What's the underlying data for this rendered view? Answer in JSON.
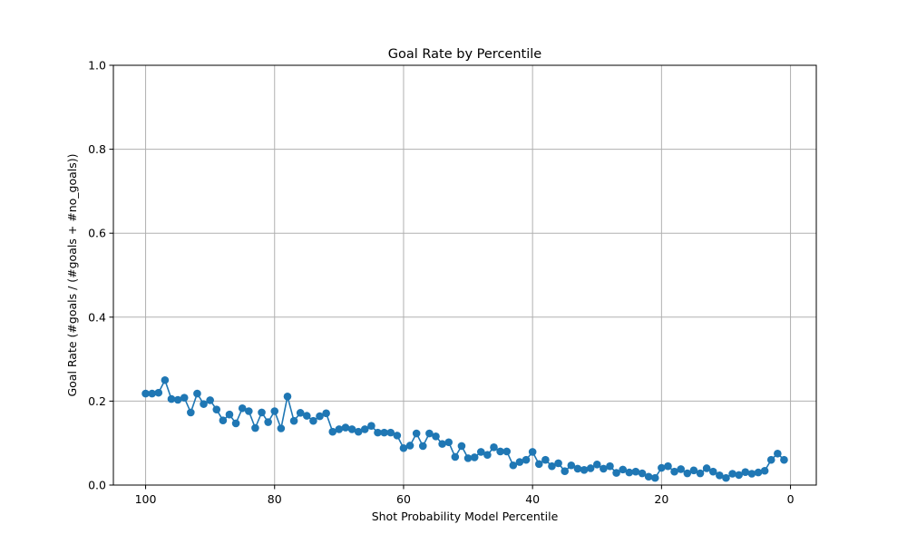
{
  "chart_data": {
    "type": "line",
    "title": "Goal Rate by Percentile",
    "xlabel": "Shot Probability Model Percentile",
    "ylabel": "Goal Rate (#goals / (#goals + #no_goals))",
    "xlim": [
      105,
      -4
    ],
    "ylim": [
      0,
      1
    ],
    "x_ticks": [
      100,
      80,
      60,
      40,
      20,
      0
    ],
    "y_ticks": [
      0.0,
      0.2,
      0.4,
      0.6,
      0.8,
      1.0
    ],
    "x_tick_labels": [
      "100",
      "80",
      "60",
      "40",
      "20",
      "0"
    ],
    "y_tick_labels": [
      "0.0",
      "0.2",
      "0.4",
      "0.6",
      "0.8",
      "1.0"
    ],
    "grid": true,
    "series": [
      {
        "color": "#1f77b4",
        "marker": "circle",
        "x": [
          100,
          99,
          98,
          97,
          96,
          95,
          94,
          93,
          92,
          91,
          90,
          89,
          88,
          87,
          86,
          85,
          84,
          83,
          82,
          81,
          80,
          79,
          78,
          77,
          76,
          75,
          74,
          73,
          72,
          71,
          70,
          69,
          68,
          67,
          66,
          65,
          64,
          63,
          62,
          61,
          60,
          59,
          58,
          57,
          56,
          55,
          54,
          53,
          52,
          51,
          50,
          49,
          48,
          47,
          46,
          45,
          44,
          43,
          42,
          41,
          40,
          39,
          38,
          37,
          36,
          35,
          34,
          33,
          32,
          31,
          30,
          29,
          28,
          27,
          26,
          25,
          24,
          23,
          22,
          21,
          20,
          19,
          18,
          17,
          16,
          15,
          14,
          13,
          12,
          11,
          10,
          9,
          8,
          7,
          6,
          5,
          4,
          3,
          2,
          1
        ],
        "y": [
          0.218,
          0.218,
          0.22,
          0.25,
          0.205,
          0.203,
          0.208,
          0.173,
          0.218,
          0.193,
          0.202,
          0.18,
          0.154,
          0.168,
          0.147,
          0.183,
          0.176,
          0.136,
          0.173,
          0.15,
          0.176,
          0.135,
          0.211,
          0.153,
          0.172,
          0.165,
          0.153,
          0.164,
          0.171,
          0.127,
          0.133,
          0.137,
          0.133,
          0.127,
          0.133,
          0.141,
          0.125,
          0.125,
          0.125,
          0.118,
          0.088,
          0.094,
          0.123,
          0.093,
          0.123,
          0.116,
          0.098,
          0.102,
          0.067,
          0.093,
          0.064,
          0.066,
          0.079,
          0.072,
          0.09,
          0.08,
          0.08,
          0.047,
          0.055,
          0.06,
          0.079,
          0.05,
          0.06,
          0.045,
          0.052,
          0.033,
          0.047,
          0.039,
          0.036,
          0.04,
          0.049,
          0.039,
          0.045,
          0.029,
          0.037,
          0.03,
          0.032,
          0.028,
          0.02,
          0.017,
          0.041,
          0.045,
          0.032,
          0.038,
          0.028,
          0.035,
          0.028,
          0.04,
          0.032,
          0.023,
          0.017,
          0.027,
          0.024,
          0.031,
          0.027,
          0.03,
          0.034,
          0.06,
          0.075,
          0.06
        ]
      }
    ]
  }
}
